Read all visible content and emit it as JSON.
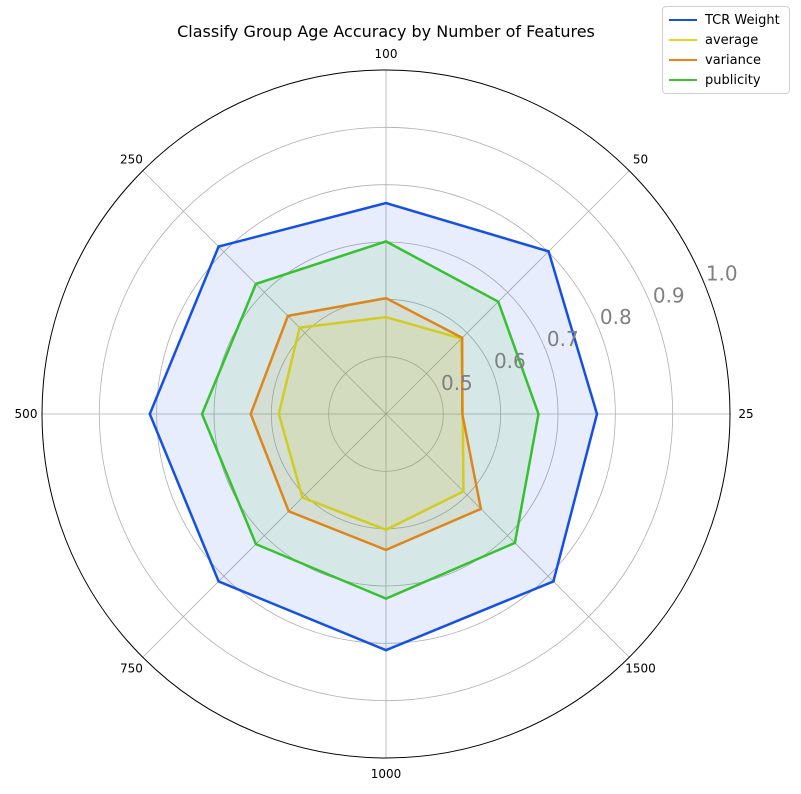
{
  "chart_data": {
    "type": "radar",
    "title": "Classify Group Age Accuracy by Number of Features",
    "categories": [
      "25",
      "50",
      "100",
      "250",
      "500",
      "750",
      "1000",
      "1500"
    ],
    "r_ticks": [
      "0.5",
      "0.6",
      "0.7",
      "0.8",
      "0.9",
      "1.0"
    ],
    "r_tick_values": [
      0.5,
      0.6,
      0.7,
      0.8,
      0.9,
      1.0
    ],
    "rlim": [
      0.4,
      1.0
    ],
    "grid": true,
    "legend_position": "top-right",
    "series": [
      {
        "name": "TCR Weight",
        "color": "#1450e6",
        "fill": true,
        "values": [
          0.768,
          0.801,
          0.768,
          0.813,
          0.812,
          0.813,
          0.812,
          0.813
        ]
      },
      {
        "name": "average",
        "color": "#e0d622",
        "values": [
          0.534,
          0.586,
          0.569,
          0.613,
          0.587,
          0.606,
          0.602,
          0.591
        ]
      },
      {
        "name": "variance",
        "color": "#f07f1a",
        "values": [
          0.533,
          0.588,
          0.602,
          0.642,
          0.636,
          0.64,
          0.637,
          0.634
        ]
      },
      {
        "name": "publicity",
        "color": "#36c12e",
        "values": [
          0.666,
          0.677,
          0.701,
          0.721,
          0.721,
          0.721,
          0.722,
          0.718
        ]
      }
    ]
  }
}
